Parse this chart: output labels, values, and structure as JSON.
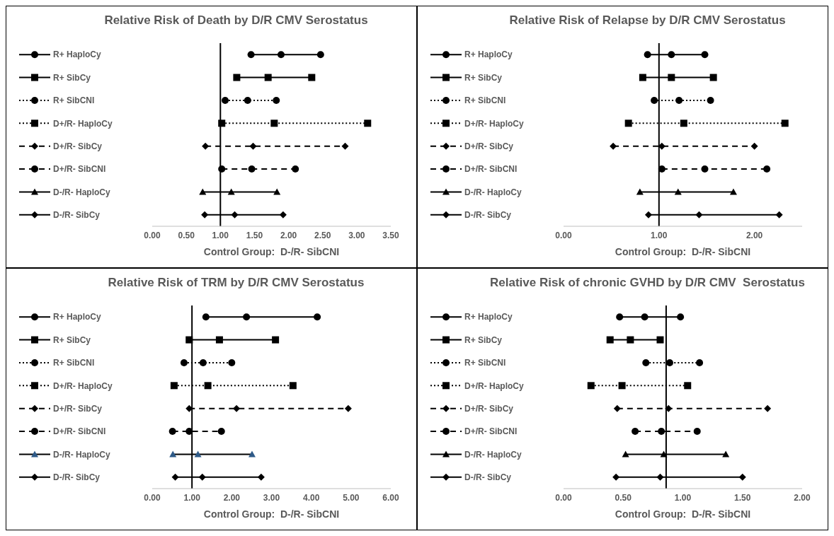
{
  "chart_data": [
    {
      "type": "line",
      "orientation": "horizontal",
      "title": "Relative Risk of Death by D/R CMV Serostatus",
      "xlabel": "Control Group:  D-/R- SibCNI",
      "grid": false,
      "xlim": [
        0,
        3.5
      ],
      "xticks": [
        {
          "value": 0,
          "label": "0.00"
        },
        {
          "value": 0.5,
          "label": "0.50"
        },
        {
          "value": 1,
          "label": "1.00"
        },
        {
          "value": 1.5,
          "label": "1.50"
        },
        {
          "value": 2,
          "label": "2.00"
        },
        {
          "value": 2.5,
          "label": "2.50"
        },
        {
          "value": 3,
          "label": "3.00"
        },
        {
          "value": 3.5,
          "label": "3.50"
        }
      ],
      "categories": [
        "R+ HaploCy",
        "R+ SibCy",
        "R+ SibCNI",
        "D+/R- HaploCy",
        "D+/R- SibCy",
        "D+/R- SibCNI",
        "D-/R- HaploCy",
        "D-/R- SibCy"
      ],
      "ref_lines": [
        {
          "axis": "x",
          "value": 1,
          "color": "#000000"
        }
      ],
      "series": [
        {
          "color": "#000000",
          "marker": "circle",
          "line_style": "solid",
          "x": [
            "R+ HaploCy",
            "R+ HaploCy",
            "R+ HaploCy"
          ],
          "values": [
            1.45,
            1.89,
            2.47
          ]
        },
        {
          "color": "#000000",
          "marker": "square",
          "line_style": "solid",
          "x": [
            "R+ SibCy",
            "R+ SibCy",
            "R+ SibCy"
          ],
          "values": [
            1.24,
            1.7,
            2.34
          ]
        },
        {
          "color": "#000000",
          "marker": "circle",
          "line_style": "dotted",
          "x": [
            "R+ SibCNI",
            "R+ SibCNI",
            "R+ SibCNI"
          ],
          "values": [
            1.07,
            1.4,
            1.82
          ]
        },
        {
          "color": "#000000",
          "marker": "square",
          "line_style": "dotted",
          "x": [
            "D+/R- HaploCy",
            "D+/R- HaploCy",
            "D+/R- HaploCy"
          ],
          "values": [
            1.02,
            1.79,
            3.16
          ]
        },
        {
          "color": "#000000",
          "marker": "diamond",
          "line_style": "dashed",
          "x": [
            "D+/R- SibCy",
            "D+/R- SibCy",
            "D+/R- SibCy"
          ],
          "values": [
            0.78,
            1.48,
            2.83
          ]
        },
        {
          "color": "#000000",
          "marker": "circle",
          "line_style": "dashed",
          "x": [
            "D+/R- SibCNI",
            "D+/R- SibCNI",
            "D+/R- SibCNI"
          ],
          "values": [
            1.02,
            1.46,
            2.1
          ]
        },
        {
          "color": "#000000",
          "marker": "triangle",
          "line_style": "solid",
          "x": [
            "D-/R- HaploCy",
            "D-/R- HaploCy",
            "D-/R- HaploCy"
          ],
          "values": [
            0.74,
            1.16,
            1.83
          ]
        },
        {
          "color": "#000000",
          "marker": "diamond",
          "line_style": "solid",
          "x": [
            "D-/R- SibCy",
            "D-/R- SibCy",
            "D-/R- SibCy"
          ],
          "values": [
            0.77,
            1.21,
            1.92
          ]
        }
      ]
    },
    {
      "type": "line",
      "orientation": "horizontal",
      "title": "Relative Risk of Relapse by D/R CMV Serostatus",
      "xlabel": "Control Group:  D-/R- SibCNI",
      "grid": false,
      "xlim": [
        0,
        2.5
      ],
      "xticks": [
        {
          "value": 0,
          "label": "0.00"
        },
        {
          "value": 1,
          "label": "1.00"
        },
        {
          "value": 2,
          "label": "2.00"
        }
      ],
      "categories": [
        "R+ HaploCy",
        "R+ SibCy",
        "R+ SibCNI",
        "D+/R- HaploCy",
        "D+/R- SibCy",
        "D+/R- SibCNI",
        "D-/R- HaploCy",
        "D-/R- SibCy"
      ],
      "ref_lines": [
        {
          "axis": "x",
          "value": 1,
          "color": "#000000"
        }
      ],
      "series": [
        {
          "color": "#000000",
          "marker": "circle",
          "line_style": "solid",
          "x": [
            "R+ HaploCy",
            "R+ HaploCy",
            "R+ HaploCy"
          ],
          "values": [
            0.88,
            1.13,
            1.48
          ]
        },
        {
          "color": "#000000",
          "marker": "square",
          "line_style": "solid",
          "x": [
            "R+ SibCy",
            "R+ SibCy",
            "R+ SibCy"
          ],
          "values": [
            0.83,
            1.13,
            1.57
          ]
        },
        {
          "color": "#000000",
          "marker": "circle",
          "line_style": "dotted",
          "x": [
            "R+ SibCNI",
            "R+ SibCNI",
            "R+ SibCNI"
          ],
          "values": [
            0.95,
            1.21,
            1.54
          ]
        },
        {
          "color": "#000000",
          "marker": "square",
          "line_style": "dotted",
          "x": [
            "D+/R- HaploCy",
            "D+/R- HaploCy",
            "D+/R- HaploCy"
          ],
          "values": [
            0.68,
            1.26,
            2.32
          ]
        },
        {
          "color": "#000000",
          "marker": "diamond",
          "line_style": "dashed",
          "x": [
            "D+/R- SibCy",
            "D+/R- SibCy",
            "D+/R- SibCy"
          ],
          "values": [
            0.52,
            1.03,
            2.0
          ]
        },
        {
          "color": "#000000",
          "marker": "circle",
          "line_style": "dashed",
          "x": [
            "D+/R- SibCNI",
            "D+/R- SibCNI",
            "D+/R- SibCNI"
          ],
          "values": [
            1.03,
            1.48,
            2.13
          ]
        },
        {
          "color": "#000000",
          "marker": "triangle",
          "line_style": "solid",
          "x": [
            "D-/R- HaploCy",
            "D-/R- HaploCy",
            "D-/R- HaploCy"
          ],
          "values": [
            0.8,
            1.2,
            1.78
          ]
        },
        {
          "color": "#000000",
          "marker": "diamond",
          "line_style": "solid",
          "x": [
            "D-/R- SibCy",
            "D-/R- SibCy",
            "D-/R- SibCy"
          ],
          "values": [
            0.89,
            1.42,
            2.26
          ]
        }
      ]
    },
    {
      "type": "line",
      "orientation": "horizontal",
      "title": "Relative Risk of TRM by D/R CMV Serostatus",
      "xlabel": "Control Group:  D-/R- SibCNI",
      "grid": false,
      "xlim": [
        0,
        6
      ],
      "xticks": [
        {
          "value": 0,
          "label": "0.00"
        },
        {
          "value": 1,
          "label": "1.00"
        },
        {
          "value": 2,
          "label": "2.00"
        },
        {
          "value": 3,
          "label": "3.00"
        },
        {
          "value": 4,
          "label": "4.00"
        },
        {
          "value": 5,
          "label": "5.00"
        },
        {
          "value": 6,
          "label": "6.00"
        }
      ],
      "categories": [
        "R+ HaploCy",
        "R+ SibCy",
        "R+ SibCNI",
        "D+/R- HaploCy",
        "D+/R- SibCy",
        "D+/R- SibCNI",
        "D-/R- HaploCy",
        "D-/R- SibCy"
      ],
      "ref_lines": [
        {
          "axis": "x",
          "value": 1,
          "color": "#000000"
        }
      ],
      "series": [
        {
          "color": "#000000",
          "marker": "circle",
          "line_style": "solid",
          "x": [
            "R+ HaploCy",
            "R+ HaploCy",
            "R+ HaploCy"
          ],
          "values": [
            1.35,
            2.37,
            4.15
          ]
        },
        {
          "color": "#000000",
          "marker": "square",
          "line_style": "solid",
          "x": [
            "R+ SibCy",
            "R+ SibCy",
            "R+ SibCy"
          ],
          "values": [
            0.93,
            1.69,
            3.1
          ]
        },
        {
          "color": "#000000",
          "marker": "circle",
          "line_style": "dotted",
          "x": [
            "R+ SibCNI",
            "R+ SibCNI",
            "R+ SibCNI"
          ],
          "values": [
            0.8,
            1.28,
            2.0
          ]
        },
        {
          "color": "#000000",
          "marker": "square",
          "line_style": "dotted",
          "x": [
            "D+/R- HaploCy",
            "D+/R- HaploCy",
            "D+/R- HaploCy"
          ],
          "values": [
            0.55,
            1.4,
            3.54
          ]
        },
        {
          "color": "#000000",
          "marker": "diamond",
          "line_style": "dashed",
          "x": [
            "D+/R- SibCy",
            "D+/R- SibCy",
            "D+/R- SibCy"
          ],
          "values": [
            0.93,
            2.12,
            4.93
          ]
        },
        {
          "color": "#000000",
          "marker": "circle",
          "line_style": "dashed",
          "x": [
            "D+/R- SibCNI",
            "D+/R- SibCNI",
            "D+/R- SibCNI"
          ],
          "values": [
            0.51,
            0.93,
            1.74
          ]
        },
        {
          "color": "#000000",
          "colors": [
            "#2e5a88",
            "#2e5a88",
            "#2e5a88"
          ],
          "marker": "triangle",
          "line_style": "solid",
          "x": [
            "D-/R- HaploCy",
            "D-/R- HaploCy",
            "D-/R- HaploCy"
          ],
          "values": [
            0.52,
            1.15,
            2.51
          ]
        },
        {
          "color": "#000000",
          "marker": "diamond",
          "line_style": "solid",
          "x": [
            "D-/R- SibCy",
            "D-/R- SibCy",
            "D-/R- SibCy"
          ],
          "values": [
            0.58,
            1.26,
            2.74
          ]
        }
      ]
    },
    {
      "type": "line",
      "orientation": "horizontal",
      "title": "Relative Risk of chronic GVHD by D/R CMV  Serostatus",
      "xlabel": "Control Group:  D-/R- SibCNI",
      "grid": false,
      "xlim": [
        0,
        2
      ],
      "xticks": [
        {
          "value": 0,
          "label": "0.00"
        },
        {
          "value": 0.5,
          "label": "0.50"
        },
        {
          "value": 1,
          "label": "1.00"
        },
        {
          "value": 1.5,
          "label": "1.50"
        },
        {
          "value": 2,
          "label": "2.00"
        }
      ],
      "categories": [
        "R+ HaploCy",
        "R+ SibCy",
        "R+ SibCNI",
        "D+/R- HaploCy",
        "D+/R- SibCy",
        "D+/R- SibCNI",
        "D-/R- HaploCy",
        "D-/R- SibCy"
      ],
      "ref_lines": [
        {
          "axis": "x",
          "value": 0.86,
          "color": "#000000"
        }
      ],
      "series": [
        {
          "color": "#000000",
          "marker": "circle",
          "line_style": "solid",
          "x": [
            "R+ HaploCy",
            "R+ HaploCy",
            "R+ HaploCy"
          ],
          "values": [
            0.47,
            0.68,
            0.98
          ]
        },
        {
          "color": "#000000",
          "marker": "square",
          "line_style": "solid",
          "x": [
            "R+ SibCy",
            "R+ SibCy",
            "R+ SibCy"
          ],
          "values": [
            0.39,
            0.56,
            0.81
          ]
        },
        {
          "color": "#000000",
          "marker": "circle",
          "line_style": "dotted",
          "x": [
            "R+ SibCNI",
            "R+ SibCNI",
            "R+ SibCNI"
          ],
          "values": [
            0.69,
            0.89,
            1.14
          ]
        },
        {
          "color": "#000000",
          "marker": "square",
          "line_style": "dotted",
          "x": [
            "D+/R- HaploCy",
            "D+/R- HaploCy",
            "D+/R- HaploCy"
          ],
          "values": [
            0.23,
            0.49,
            1.04
          ]
        },
        {
          "color": "#000000",
          "marker": "diamond",
          "line_style": "dashed",
          "x": [
            "D+/R- SibCy",
            "D+/R- SibCy",
            "D+/R- SibCy"
          ],
          "values": [
            0.45,
            0.88,
            1.71
          ]
        },
        {
          "color": "#000000",
          "marker": "circle",
          "line_style": "dashed",
          "x": [
            "D+/R- SibCNI",
            "D+/R- SibCNI",
            "D+/R- SibCNI"
          ],
          "values": [
            0.6,
            0.82,
            1.12
          ]
        },
        {
          "color": "#000000",
          "marker": "triangle",
          "line_style": "solid",
          "x": [
            "D-/R- HaploCy",
            "D-/R- HaploCy",
            "D-/R- HaploCy"
          ],
          "values": [
            0.52,
            0.84,
            1.36
          ]
        },
        {
          "color": "#000000",
          "marker": "diamond",
          "line_style": "solid",
          "x": [
            "D-/R- SibCy",
            "D-/R- SibCy",
            "D-/R- SibCy"
          ],
          "values": [
            0.44,
            0.81,
            1.5
          ]
        }
      ]
    }
  ]
}
